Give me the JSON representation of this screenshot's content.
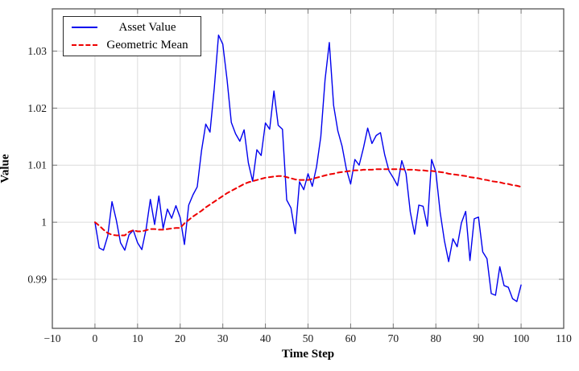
{
  "chart_data": {
    "type": "line",
    "title": "",
    "xlabel": "Time Step",
    "ylabel": "Value",
    "xlim": [
      -10,
      110
    ],
    "ylim": [
      0.9814,
      1.0374
    ],
    "grid": true,
    "legend_position": "top-left",
    "xticks": {
      "values": [
        -10,
        0,
        10,
        20,
        30,
        40,
        50,
        60,
        70,
        80,
        90,
        100,
        110
      ],
      "labels": [
        "−10",
        "0",
        "10",
        "20",
        "30",
        "40",
        "50",
        "60",
        "70",
        "80",
        "90",
        "100",
        "110"
      ]
    },
    "yticks": {
      "values": [
        0.99,
        1.0,
        1.01,
        1.02,
        1.03
      ],
      "labels": [
        "0.99",
        "1",
        "1.01",
        "1.02",
        "1.03"
      ]
    },
    "x": [
      0,
      1,
      2,
      3,
      4,
      5,
      6,
      7,
      8,
      9,
      10,
      11,
      12,
      13,
      14,
      15,
      16,
      17,
      18,
      19,
      20,
      21,
      22,
      23,
      24,
      25,
      26,
      27,
      28,
      29,
      30,
      31,
      32,
      33,
      34,
      35,
      36,
      37,
      38,
      39,
      40,
      41,
      42,
      43,
      44,
      45,
      46,
      47,
      48,
      49,
      50,
      51,
      52,
      53,
      54,
      55,
      56,
      57,
      58,
      59,
      60,
      61,
      62,
      63,
      64,
      65,
      66,
      67,
      68,
      69,
      70,
      71,
      72,
      73,
      74,
      75,
      76,
      77,
      78,
      79,
      80,
      81,
      82,
      83,
      84,
      85,
      86,
      87,
      88,
      89,
      90,
      91,
      92,
      93,
      94,
      95,
      96,
      97,
      98,
      99,
      100
    ],
    "series": [
      {
        "name": "Asset Value",
        "color": "#0000ee",
        "style": "solid",
        "width": 1.4,
        "values": [
          1.0,
          0.9955,
          0.9951,
          0.9976,
          1.0036,
          1.0004,
          0.9964,
          0.9951,
          0.9978,
          0.9986,
          0.9964,
          0.9952,
          0.9988,
          1.004,
          0.9996,
          1.0046,
          0.9989,
          1.0023,
          1.0007,
          1.0029,
          1.0008,
          0.9961,
          1.003,
          1.0048,
          1.0062,
          1.0125,
          1.0172,
          1.0158,
          1.0235,
          1.0328,
          1.0312,
          1.025,
          1.0175,
          1.0155,
          1.0142,
          1.0162,
          1.0104,
          1.0072,
          1.0127,
          1.0117,
          1.0174,
          1.0163,
          1.023,
          1.017,
          1.0163,
          1.0039,
          1.0025,
          0.998,
          1.0071,
          1.0057,
          1.0085,
          1.0063,
          1.0097,
          1.015,
          1.025,
          1.0315,
          1.0205,
          1.016,
          1.0133,
          1.0093,
          1.0067,
          1.011,
          1.01,
          1.013,
          1.0165,
          1.0138,
          1.0152,
          1.0157,
          1.0118,
          1.009,
          1.0078,
          1.0064,
          1.0108,
          1.0085,
          1.0018,
          0.9979,
          1.003,
          1.0028,
          0.9993,
          1.011,
          1.0088,
          1.0018,
          0.9968,
          0.9931,
          0.9971,
          0.9957,
          0.9999,
          1.0019,
          0.9933,
          1.0006,
          1.0009,
          0.9948,
          0.9936,
          0.9875,
          0.9872,
          0.9922,
          0.9889,
          0.9886,
          0.9866,
          0.9861,
          0.989
        ]
      },
      {
        "name": "Geometric Mean",
        "color": "#ee0000",
        "style": "dashed",
        "width": 2.0,
        "values": [
          1.0,
          0.9994,
          0.9987,
          0.9981,
          0.9978,
          0.9977,
          0.9977,
          0.9977,
          0.9983,
          0.9986,
          0.9984,
          0.9984,
          0.9986,
          0.9988,
          0.9988,
          0.9987,
          0.9987,
          0.9988,
          0.9989,
          0.999,
          0.999,
          0.9998,
          1.0004,
          1.001,
          1.0015,
          1.002,
          1.0026,
          1.0031,
          1.0036,
          1.0041,
          1.0046,
          1.0051,
          1.0055,
          1.0059,
          1.0063,
          1.0067,
          1.007,
          1.0072,
          1.0074,
          1.0076,
          1.0078,
          1.0079,
          1.008,
          1.0081,
          1.0081,
          1.0079,
          1.0077,
          1.0075,
          1.0074,
          1.0074,
          1.0074,
          1.0076,
          1.0078,
          1.008,
          1.0082,
          1.0084,
          1.0085,
          1.0087,
          1.0088,
          1.0089,
          1.009,
          1.0091,
          1.0091,
          1.0092,
          1.0092,
          1.0092,
          1.0093,
          1.0093,
          1.0093,
          1.0093,
          1.0093,
          1.0093,
          1.0093,
          1.0092,
          1.0092,
          1.0092,
          1.0091,
          1.0091,
          1.009,
          1.009,
          1.0089,
          1.0088,
          1.0087,
          1.0085,
          1.0084,
          1.0083,
          1.0082,
          1.0081,
          1.0079,
          1.0078,
          1.0077,
          1.0075,
          1.0074,
          1.0072,
          1.0071,
          1.007,
          1.0068,
          1.0067,
          1.0065,
          1.0064,
          1.0062
        ]
      }
    ],
    "colors": {
      "background": "#ffffff",
      "grid": "#dcdcdc",
      "frame": "#555555",
      "tick": "#777777",
      "text": "#1a1a1a"
    }
  }
}
